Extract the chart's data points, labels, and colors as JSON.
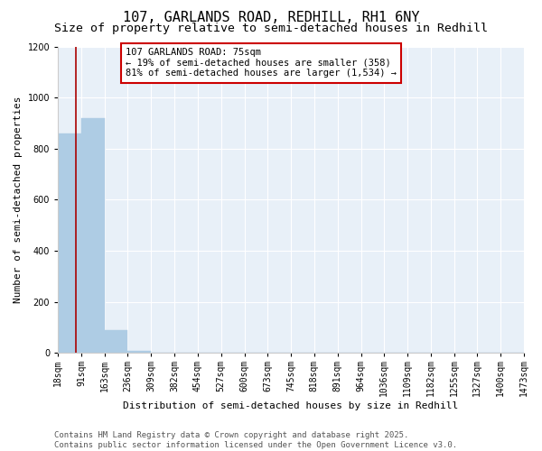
{
  "title": "107, GARLANDS ROAD, REDHILL, RH1 6NY",
  "subtitle": "Size of property relative to semi-detached houses in Redhill",
  "xlabel": "Distribution of semi-detached houses by size in Redhill",
  "ylabel": "Number of semi-detached properties",
  "property_size": 75,
  "bin_edges": [
    18,
    91,
    163,
    236,
    309,
    382,
    454,
    527,
    600,
    673,
    745,
    818,
    891,
    964,
    1036,
    1109,
    1182,
    1255,
    1327,
    1400,
    1473
  ],
  "bin_labels": [
    "18sqm",
    "91sqm",
    "163sqm",
    "236sqm",
    "309sqm",
    "382sqm",
    "454sqm",
    "527sqm",
    "600sqm",
    "673sqm",
    "745sqm",
    "818sqm",
    "891sqm",
    "964sqm",
    "1036sqm",
    "1109sqm",
    "1182sqm",
    "1255sqm",
    "1327sqm",
    "1400sqm",
    "1473sqm"
  ],
  "counts": [
    860,
    920,
    90,
    10,
    0,
    0,
    0,
    0,
    0,
    0,
    0,
    0,
    0,
    0,
    0,
    0,
    0,
    0,
    0,
    0
  ],
  "bar_color": "#aecce4",
  "bar_edge_color": "#aecce4",
  "vline_color": "#aa0000",
  "vline_x": 75,
  "annotation_text": "107 GARLANDS ROAD: 75sqm\n← 19% of semi-detached houses are smaller (358)\n81% of semi-detached houses are larger (1,534) →",
  "annotation_box_color": "#cc0000",
  "ylim": [
    0,
    1200
  ],
  "yticks": [
    0,
    200,
    400,
    600,
    800,
    1000,
    1200
  ],
  "background_color": "#e8f0f8",
  "footer_line1": "Contains HM Land Registry data © Crown copyright and database right 2025.",
  "footer_line2": "Contains public sector information licensed under the Open Government Licence v3.0.",
  "title_fontsize": 11,
  "subtitle_fontsize": 9.5,
  "axis_label_fontsize": 8,
  "tick_fontsize": 7,
  "annotation_fontsize": 7.5,
  "footer_fontsize": 6.5
}
